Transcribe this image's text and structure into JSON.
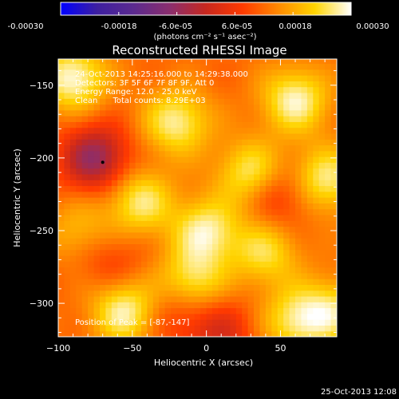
{
  "colorbar": {
    "tick_labels": [
      "-0.00030",
      "-0.00018",
      "-6.0e-05",
      "6.0e-05",
      "0.00018",
      "0.00030"
    ],
    "tick_values": [
      -0.0003,
      -0.00018,
      -6e-05,
      6e-05,
      0.00018,
      0.0003
    ],
    "range": [
      -0.0003,
      0.0003
    ],
    "units": "(photons cm⁻² s⁻¹ asec⁻²)",
    "colors": [
      "#0000ff",
      "#3d1fa0",
      "#5b2a8f",
      "#8a2e6e",
      "#c8281f",
      "#ff3a00",
      "#ff8a00",
      "#ffd400",
      "#ffffff"
    ]
  },
  "chart_data": {
    "type": "heatmap",
    "title": "Reconstructed RHESSI Image",
    "xlabel": "Heliocentric X (arcsec)",
    "ylabel": "Heliocentric Y (arcsec)",
    "xlim": [
      -100,
      88
    ],
    "ylim": [
      -323,
      -132
    ],
    "x_ticks": [
      -100,
      -50,
      0,
      50
    ],
    "y_ticks": [
      -150,
      -200,
      -250,
      -300
    ],
    "x_tick_labels": [
      "−100",
      "−50",
      "0",
      "50"
    ],
    "y_tick_labels": [
      "−150",
      "−200",
      "−250",
      "−300"
    ],
    "info_lines": [
      "24-Oct-2013 14:25:16.000 to 14:29:38.000",
      "Detectors: 3F 5F 6F 7F 8F 9F, Att 0",
      "Energy Range: 12.0 - 25.0 keV",
      "Clean      Total counts: 8.29E+03"
    ],
    "peak_text": "Position of Peak = [-87,-147]",
    "peak_position": [
      -87,
      -147
    ],
    "minimum_marker": [
      -70,
      -203
    ],
    "sources": [
      {
        "x": -90,
        "y": -145,
        "level": 0.85
      },
      {
        "x": -20,
        "y": -175,
        "level": 0.75
      },
      {
        "x": 60,
        "y": -160,
        "level": 0.8
      },
      {
        "x": 30,
        "y": -210,
        "level": 0.7
      },
      {
        "x": -45,
        "y": -230,
        "level": 0.7
      },
      {
        "x": 0,
        "y": -250,
        "level": 0.75
      },
      {
        "x": -10,
        "y": -285,
        "level": 0.7
      },
      {
        "x": 40,
        "y": -265,
        "level": 0.6
      },
      {
        "x": -55,
        "y": -305,
        "level": 0.8
      },
      {
        "x": 60,
        "y": -312,
        "level": 0.65
      },
      {
        "x": 80,
        "y": -215,
        "level": 0.75
      },
      {
        "x": -85,
        "y": -250,
        "level": 0.4
      },
      {
        "x": 85,
        "y": -305,
        "level": 0.6
      }
    ],
    "negative_regions": [
      {
        "x": -75,
        "y": -200,
        "level": -0.9
      },
      {
        "x": 50,
        "y": -225,
        "level": -0.45
      },
      {
        "x": 10,
        "y": -320,
        "level": -0.45
      },
      {
        "x": -20,
        "y": -305,
        "level": -0.35
      },
      {
        "x": -65,
        "y": -270,
        "level": -0.3
      }
    ]
  },
  "footer": {
    "date": "25-Oct-2013 12:08"
  }
}
